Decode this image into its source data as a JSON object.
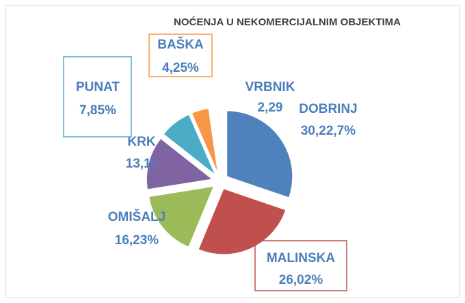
{
  "chart_data": {
    "type": "pie",
    "title": "NOĆENJA U NEKOMERCIJALNIM OBJEKTIMA",
    "categories": [
      "DOBRINJ",
      "MALINSKA",
      "OMIŠALJ",
      "KRK",
      "PUNAT",
      "BAŠKA",
      "VRBNIK"
    ],
    "values": [
      30.22,
      26.02,
      16.23,
      13.11,
      7.85,
      4.25,
      2.29
    ],
    "value_labels": [
      "30,22,7%",
      "26,02%",
      "16,23%",
      "13,11",
      "7,85%",
      "4,25%",
      "2,29"
    ],
    "colors": [
      "#4f81bd",
      "#c0504d",
      "#9bbb59",
      "#8064a2",
      "#4bacc6",
      "#f79646",
      "#ffffff"
    ]
  }
}
